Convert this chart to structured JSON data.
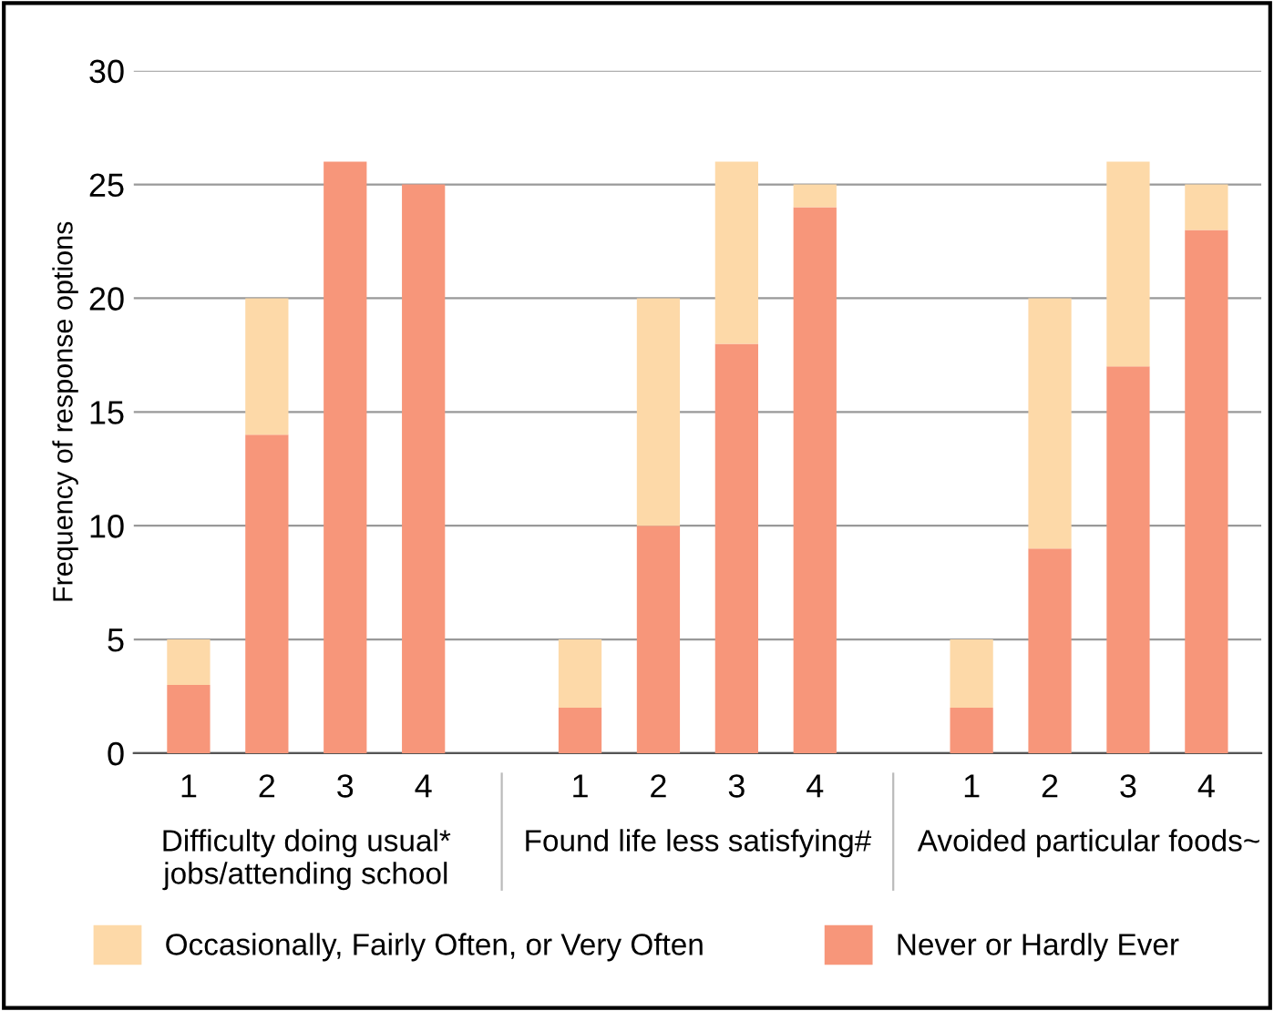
{
  "chart_data": {
    "type": "bar",
    "stacked": true,
    "ylabel": "Frequency of response options",
    "categories": [
      "1",
      "2",
      "3",
      "4",
      null,
      "1",
      "2",
      "3",
      "4",
      null,
      "1",
      "2",
      "3",
      "4"
    ],
    "series": [
      {
        "name": "Never or Hardly Ever",
        "color": "#f7967a",
        "values": [
          3,
          14,
          26,
          25,
          null,
          2,
          10,
          18,
          24,
          null,
          2,
          9,
          17,
          23
        ]
      },
      {
        "name": "Occasionally, Fairly Often, or Very Often",
        "color": "#fdd9a8",
        "values": [
          2,
          6,
          0,
          0,
          null,
          3,
          10,
          8,
          1,
          null,
          3,
          11,
          9,
          2
        ]
      }
    ],
    "annotations": [
      "Difficulty doing usual*\njobs/attending school",
      "Found life less satisfying#",
      "Avoided particular foods~"
    ],
    "ylim": [
      0,
      30
    ],
    "yticks": [
      0,
      5,
      10,
      15,
      20,
      25,
      30
    ],
    "grid": "y",
    "legend": "bottom"
  }
}
